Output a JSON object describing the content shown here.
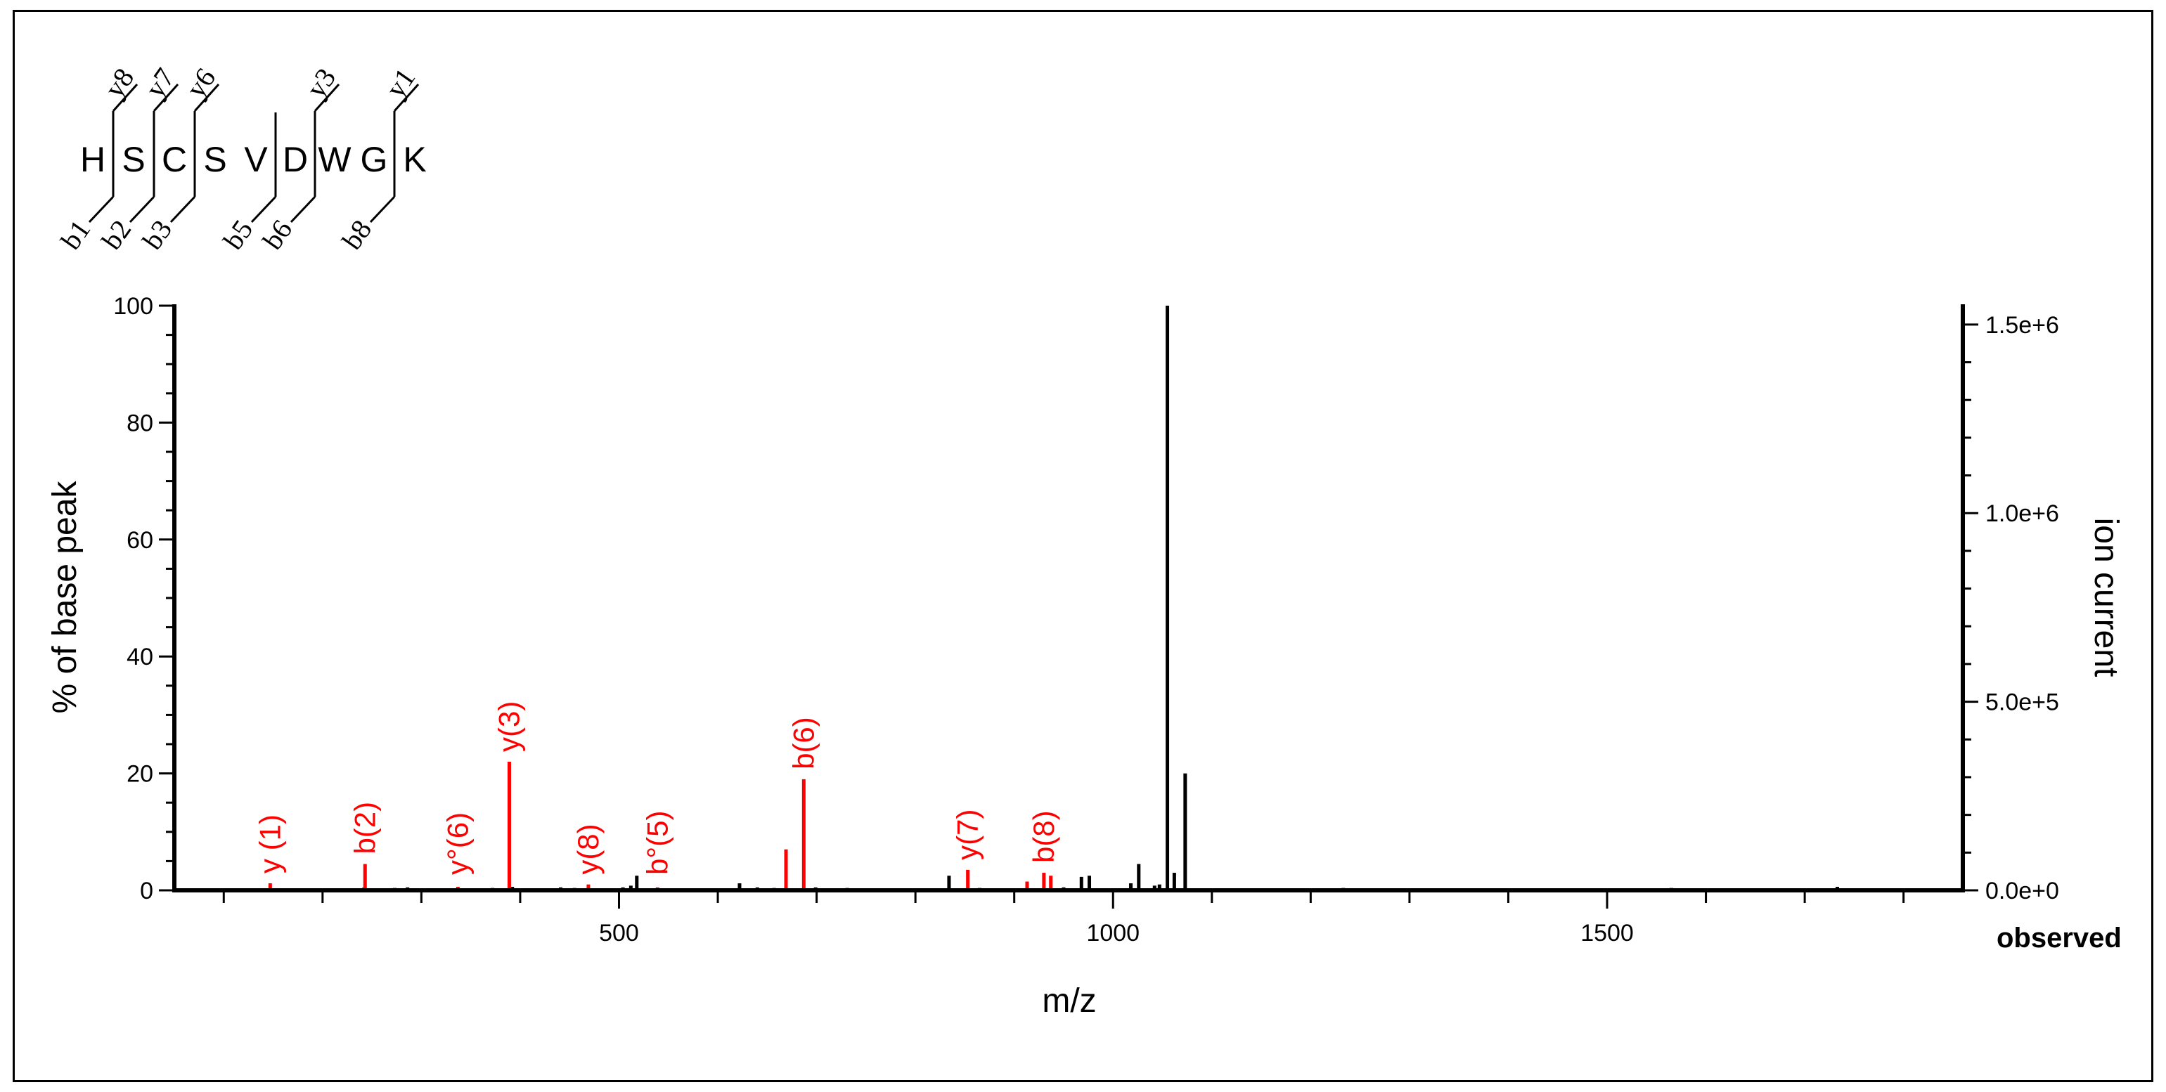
{
  "peptide": {
    "sequence": [
      "H",
      "S",
      "C",
      "S",
      "V",
      "D",
      "W",
      "G",
      "K"
    ],
    "y_fragments": [
      {
        "label": "y8",
        "after": 1
      },
      {
        "label": "y7",
        "after": 2
      },
      {
        "label": "y6",
        "after": 3
      },
      {
        "label": "y3",
        "after": 6
      },
      {
        "label": "y1",
        "after": 8
      }
    ],
    "b_fragments": [
      {
        "label": "b1",
        "after": 1
      },
      {
        "label": "b2",
        "after": 2
      },
      {
        "label": "b3",
        "after": 3
      },
      {
        "label": "b5",
        "after": 5
      },
      {
        "label": "b6",
        "after": 6
      },
      {
        "label": "b8",
        "after": 8
      }
    ]
  },
  "chart_data": {
    "type": "bar",
    "xlabel": "m/z",
    "ylabel": "% of base peak",
    "y2label": "ion current",
    "corner_label": "observed",
    "xlim": [
      50,
      1860
    ],
    "ylim": [
      0,
      100
    ],
    "y2lim": [
      0,
      1550000
    ],
    "x_ticks": [
      500,
      1000,
      1500
    ],
    "y_ticks": [
      0,
      20,
      40,
      60,
      80,
      100
    ],
    "y2_ticks": [
      {
        "value": 0,
        "label": "0.0e+0"
      },
      {
        "value": 500000,
        "label": "5.0e+5"
      },
      {
        "value": 1000000,
        "label": "1.0e+6"
      },
      {
        "value": 1500000,
        "label": "1.5e+6"
      }
    ],
    "colors": {
      "matched": "#ff0000",
      "unmatched": "#000000"
    },
    "annotated_peaks": [
      {
        "label": "y (1)",
        "mz": 147,
        "intensity": 1.2
      },
      {
        "label": "b(2)",
        "mz": 243,
        "intensity": 4.5
      },
      {
        "label": "y°(6)",
        "mz": 337,
        "intensity": 0.6
      },
      {
        "label": "y(3)",
        "mz": 389,
        "intensity": 22
      },
      {
        "label": "y(8)",
        "mz": 469,
        "intensity": 1.0
      },
      {
        "label": "b°(5)",
        "mz": 539,
        "intensity": 0.5
      },
      {
        "label": "b(6)",
        "mz": 687,
        "intensity": 19
      },
      {
        "label": "y(7)",
        "mz": 853,
        "intensity": 3.5
      },
      {
        "label": "b(8)",
        "mz": 930,
        "intensity": 3.0
      }
    ],
    "other_matched_peaks": [
      {
        "mz": 669,
        "intensity": 7
      },
      {
        "mz": 913,
        "intensity": 1.5
      },
      {
        "mz": 937,
        "intensity": 2.5
      },
      {
        "mz": 242,
        "intensity": 0.5
      }
    ],
    "unmatched_peaks": [
      {
        "mz": 1055,
        "intensity": 100
      },
      {
        "mz": 1073,
        "intensity": 20
      },
      {
        "mz": 1062,
        "intensity": 3
      },
      {
        "mz": 1026,
        "intensity": 4.5
      },
      {
        "mz": 1018,
        "intensity": 1.2
      },
      {
        "mz": 1042,
        "intensity": 0.8
      },
      {
        "mz": 1047,
        "intensity": 1.0
      },
      {
        "mz": 968,
        "intensity": 2.3
      },
      {
        "mz": 976,
        "intensity": 2.5
      },
      {
        "mz": 834,
        "intensity": 2.5
      },
      {
        "mz": 950,
        "intensity": 0.5
      },
      {
        "mz": 518,
        "intensity": 2.5
      },
      {
        "mz": 512,
        "intensity": 0.8
      },
      {
        "mz": 504,
        "intensity": 0.5
      },
      {
        "mz": 622,
        "intensity": 1.2
      },
      {
        "mz": 640,
        "intensity": 0.5
      },
      {
        "mz": 657,
        "intensity": 0.4
      },
      {
        "mz": 699,
        "intensity": 0.5
      },
      {
        "mz": 731,
        "intensity": 0.4
      },
      {
        "mz": 392,
        "intensity": 0.6
      },
      {
        "mz": 372,
        "intensity": 0.4
      },
      {
        "mz": 441,
        "intensity": 0.5
      },
      {
        "mz": 455,
        "intensity": 0.4
      },
      {
        "mz": 273,
        "intensity": 0.4
      },
      {
        "mz": 286,
        "intensity": 0.5
      },
      {
        "mz": 300,
        "intensity": 0.3
      },
      {
        "mz": 1233,
        "intensity": 0.4
      },
      {
        "mz": 1565,
        "intensity": 0.4
      },
      {
        "mz": 1733,
        "intensity": 0.6
      },
      {
        "mz": 210,
        "intensity": 0.3
      },
      {
        "mz": 895,
        "intensity": 0.3
      },
      {
        "mz": 865,
        "intensity": 0.4
      }
    ]
  }
}
